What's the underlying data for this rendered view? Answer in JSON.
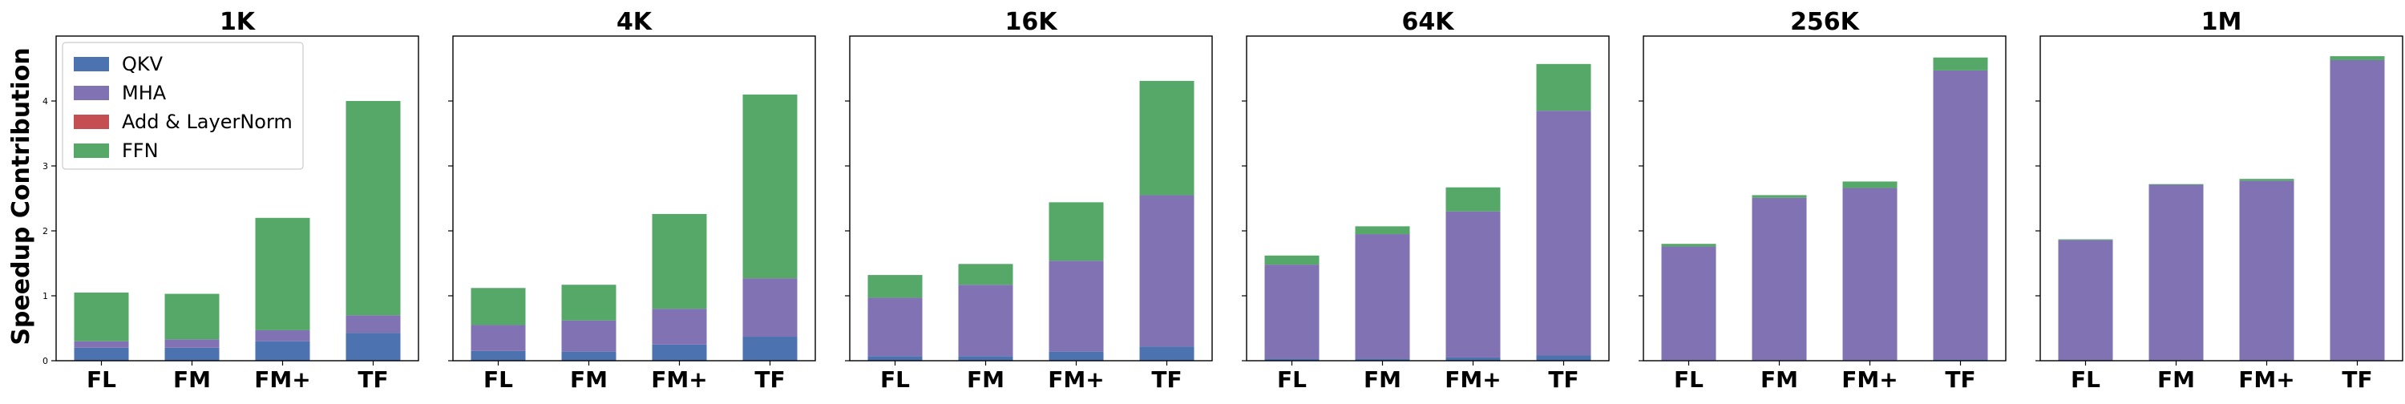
{
  "figure": {
    "ylabel": "Speedup Contribution"
  },
  "chart_data": [
    {
      "type": "bar",
      "stacked": true,
      "title": "1K",
      "categories": [
        "FL",
        "FM",
        "FM+",
        "TF"
      ],
      "ylim": [
        0,
        5
      ],
      "yticks": [
        0,
        1,
        2,
        3,
        4
      ],
      "series": [
        {
          "name": "QKV",
          "values": [
            0.2,
            0.2,
            0.3,
            0.43
          ]
        },
        {
          "name": "MHA",
          "values": [
            0.1,
            0.13,
            0.17,
            0.27
          ]
        },
        {
          "name": "Add & LayerNorm",
          "values": [
            0.0,
            0.0,
            0.0,
            0.0
          ]
        },
        {
          "name": "FFN",
          "values": [
            0.75,
            0.7,
            1.73,
            3.3
          ]
        }
      ],
      "legend": "upper-left"
    },
    {
      "type": "bar",
      "stacked": true,
      "title": "4K",
      "categories": [
        "FL",
        "FM",
        "FM+",
        "TF"
      ],
      "ylim": [
        0,
        5
      ],
      "yticks": [
        0,
        1,
        2,
        3,
        4
      ],
      "series": [
        {
          "name": "QKV",
          "values": [
            0.15,
            0.14,
            0.25,
            0.37
          ]
        },
        {
          "name": "MHA",
          "values": [
            0.4,
            0.48,
            0.55,
            0.9
          ]
        },
        {
          "name": "Add & LayerNorm",
          "values": [
            0.0,
            0.0,
            0.0,
            0.0
          ]
        },
        {
          "name": "FFN",
          "values": [
            0.57,
            0.55,
            1.46,
            2.83
          ]
        }
      ]
    },
    {
      "type": "bar",
      "stacked": true,
      "title": "16K",
      "categories": [
        "FL",
        "FM",
        "FM+",
        "TF"
      ],
      "ylim": [
        0,
        5
      ],
      "yticks": [
        0,
        1,
        2,
        3,
        4
      ],
      "series": [
        {
          "name": "QKV",
          "values": [
            0.07,
            0.07,
            0.14,
            0.22
          ]
        },
        {
          "name": "MHA",
          "values": [
            0.9,
            1.1,
            1.4,
            2.33
          ]
        },
        {
          "name": "Add & LayerNorm",
          "values": [
            0.0,
            0.0,
            0.0,
            0.0
          ]
        },
        {
          "name": "FFN",
          "values": [
            0.35,
            0.32,
            0.9,
            1.76
          ]
        }
      ]
    },
    {
      "type": "bar",
      "stacked": true,
      "title": "64K",
      "categories": [
        "FL",
        "FM",
        "FM+",
        "TF"
      ],
      "ylim": [
        0,
        5
      ],
      "yticks": [
        0,
        1,
        2,
        3,
        4
      ],
      "series": [
        {
          "name": "QKV",
          "values": [
            0.03,
            0.03,
            0.05,
            0.08
          ]
        },
        {
          "name": "MHA",
          "values": [
            1.45,
            1.92,
            2.25,
            3.77
          ]
        },
        {
          "name": "Add & LayerNorm",
          "values": [
            0.0,
            0.0,
            0.0,
            0.0
          ]
        },
        {
          "name": "FFN",
          "values": [
            0.14,
            0.12,
            0.37,
            0.72
          ]
        }
      ]
    },
    {
      "type": "bar",
      "stacked": true,
      "title": "256K",
      "categories": [
        "FL",
        "FM",
        "FM+",
        "TF"
      ],
      "ylim": [
        0,
        5
      ],
      "yticks": [
        0,
        1,
        2,
        3,
        4
      ],
      "series": [
        {
          "name": "QKV",
          "values": [
            0.01,
            0.01,
            0.01,
            0.02
          ]
        },
        {
          "name": "MHA",
          "values": [
            1.75,
            2.5,
            2.65,
            4.45
          ]
        },
        {
          "name": "Add & LayerNorm",
          "values": [
            0.0,
            0.0,
            0.0,
            0.0
          ]
        },
        {
          "name": "FFN",
          "values": [
            0.04,
            0.04,
            0.1,
            0.2
          ]
        }
      ]
    },
    {
      "type": "bar",
      "stacked": true,
      "title": "1M",
      "categories": [
        "FL",
        "FM",
        "FM+",
        "TF"
      ],
      "ylim": [
        0,
        5
      ],
      "yticks": [
        0,
        1,
        2,
        3,
        4
      ],
      "series": [
        {
          "name": "QKV",
          "values": [
            0.0,
            0.0,
            0.0,
            0.01
          ]
        },
        {
          "name": "MHA",
          "values": [
            1.86,
            2.71,
            2.77,
            4.62
          ]
        },
        {
          "name": "Add & LayerNorm",
          "values": [
            0.0,
            0.0,
            0.0,
            0.0
          ]
        },
        {
          "name": "FFN",
          "values": [
            0.01,
            0.01,
            0.03,
            0.06
          ]
        }
      ]
    }
  ],
  "legend": {
    "items": [
      {
        "name": "QKV",
        "color": "#4c72b0"
      },
      {
        "name": "MHA",
        "color": "#8172b3"
      },
      {
        "name": "Add & LayerNorm",
        "color": "#c44e52"
      },
      {
        "name": "FFN",
        "color": "#55a868"
      }
    ]
  }
}
